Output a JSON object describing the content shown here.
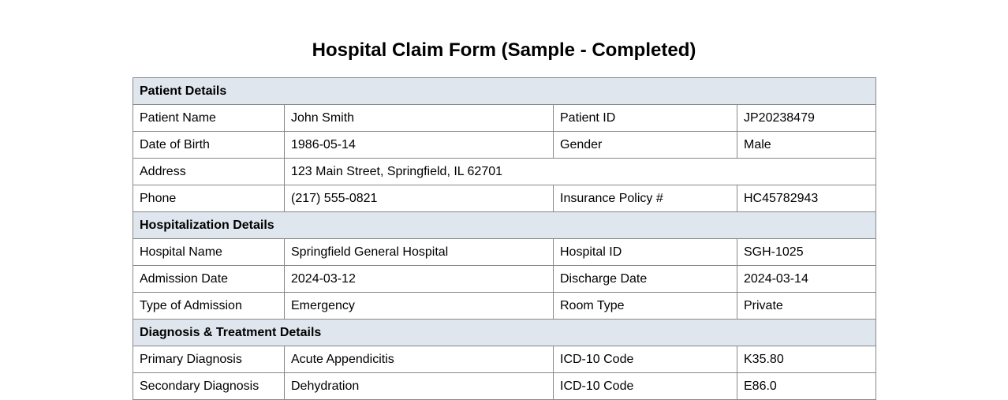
{
  "header": {
    "title": "Hospital Claim Form (Sample - Completed)"
  },
  "sections": [
    {
      "title": "Patient Details",
      "rows": [
        [
          "Patient Name",
          "John Smith",
          "Patient ID",
          "JP20238479"
        ],
        [
          "Date of Birth",
          "1986-05-14",
          "Gender",
          "Male"
        ],
        [
          "Address",
          "123 Main Street, Springfield, IL 62701"
        ],
        [
          "Phone",
          "(217) 555-0821",
          "Insurance Policy #",
          "HC45782943"
        ]
      ]
    },
    {
      "title": "Hospitalization Details",
      "rows": [
        [
          "Hospital Name",
          "Springfield General Hospital",
          "Hospital ID",
          "SGH-1025"
        ],
        [
          "Admission Date",
          "2024-03-12",
          "Discharge Date",
          "2024-03-14"
        ],
        [
          "Type of Admission",
          "Emergency",
          "Room Type",
          "Private"
        ]
      ]
    },
    {
      "title": "Diagnosis & Treatment Details",
      "rows": [
        [
          "Primary Diagnosis",
          "Acute Appendicitis",
          "ICD-10 Code",
          "K35.80"
        ],
        [
          "Secondary Diagnosis",
          "Dehydration",
          "ICD-10 Code",
          "E86.0"
        ]
      ]
    }
  ]
}
